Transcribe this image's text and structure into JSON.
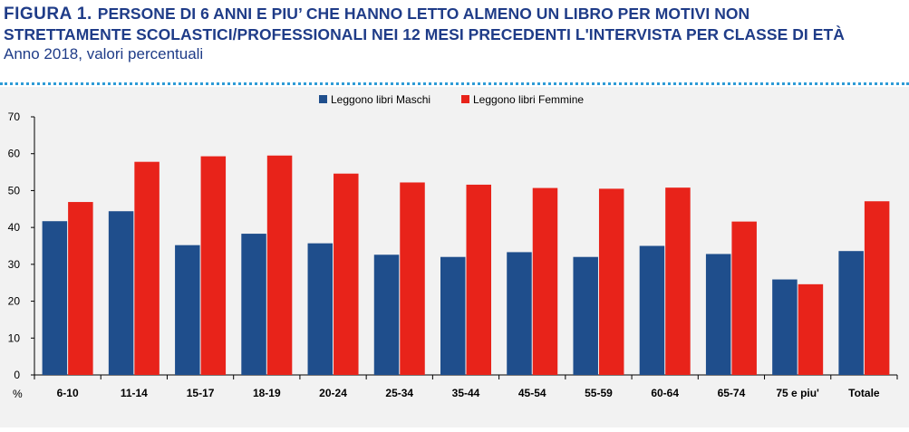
{
  "header": {
    "figure_label": "FIGURA 1.",
    "title_line1": "PERSONE DI 6 ANNI E PIU’ CHE HANNO LETTO ALMENO UN LIBRO PER MOTIVI NON",
    "title_line2": "STRETTAMENTE SCOLASTICI/PROFESSIONALI NEI 12 MESI PRECEDENTI L'INTERVISTA PER CLASSE DI ETÀ",
    "subtitle": "Anno 2018, valori percentuali"
  },
  "colors": {
    "title": "#1f3c88",
    "maschi": "#1f4e8c",
    "femmine": "#e8231a",
    "divider": "#2e9bd6",
    "background": "#f2f2f2"
  },
  "chart_data": {
    "type": "bar",
    "categories": [
      "6-10",
      "11-14",
      "15-17",
      "18-19",
      "20-24",
      "25-34",
      "35-44",
      "45-54",
      "55-59",
      "60-64",
      "65-74",
      "75 e piu'",
      "Totale"
    ],
    "series": [
      {
        "name": "Leggono libri Maschi",
        "color": "#1f4e8c",
        "values": [
          41.7,
          44.4,
          35.2,
          38.3,
          35.7,
          32.6,
          32.0,
          33.3,
          32.0,
          35.0,
          32.8,
          25.9,
          33.6
        ]
      },
      {
        "name": "Leggono libri Femmine",
        "color": "#e8231a",
        "values": [
          46.9,
          57.8,
          59.3,
          59.5,
          54.6,
          52.2,
          51.6,
          50.7,
          50.5,
          50.8,
          41.6,
          24.6,
          47.1
        ]
      }
    ],
    "yticks": [
      "0",
      "10",
      "20",
      "30",
      "40",
      "50",
      "60",
      "70"
    ],
    "ylim": [
      0,
      70
    ],
    "ylabel": "%",
    "legend_position": "top-center",
    "grid": false
  }
}
